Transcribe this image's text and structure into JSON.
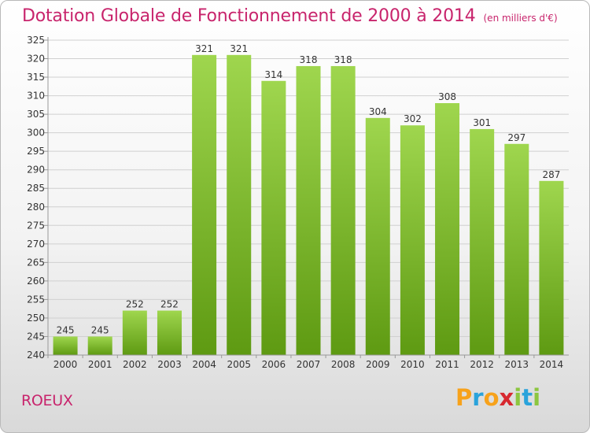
{
  "header": {
    "title": "Dotation Globale de Fonctionnement de 2000 à 2014",
    "subtitle": "(en milliers d'€)"
  },
  "footer": {
    "commune": "ROEUX",
    "logo": {
      "text": "Proxiti",
      "letters": [
        {
          "char": "P",
          "color": "#f7a21b"
        },
        {
          "char": "r",
          "color": "#2aa3db"
        },
        {
          "char": "o",
          "color": "#f7a21b"
        },
        {
          "char": "x",
          "color": "#d7282f"
        },
        {
          "char": "i",
          "color": "#8cc63f"
        },
        {
          "char": "t",
          "color": "#2aa3db"
        },
        {
          "char": "i",
          "color": "#8cc63f"
        }
      ]
    }
  },
  "colors": {
    "bar_top": "#9fd64e",
    "bar_bottom": "#5e9a12",
    "grid": "#d0d0d0",
    "title": "#c8246c"
  },
  "chart_data": {
    "type": "bar",
    "title": "Dotation Globale de Fonctionnement de 2000 à 2014",
    "subtitle": "(en milliers d'€)",
    "xlabel": "",
    "ylabel": "",
    "categories": [
      "2000",
      "2001",
      "2002",
      "2003",
      "2004",
      "2005",
      "2006",
      "2007",
      "2008",
      "2009",
      "2010",
      "2011",
      "2012",
      "2013",
      "2014"
    ],
    "values": [
      245,
      245,
      252,
      252,
      321,
      321,
      314,
      318,
      318,
      304,
      302,
      308,
      301,
      297,
      287
    ],
    "ylim": [
      240,
      325
    ],
    "yticks": [
      240,
      245,
      250,
      255,
      260,
      265,
      270,
      275,
      280,
      285,
      290,
      295,
      300,
      305,
      310,
      315,
      320,
      325
    ],
    "grid": true,
    "legend": "none"
  }
}
